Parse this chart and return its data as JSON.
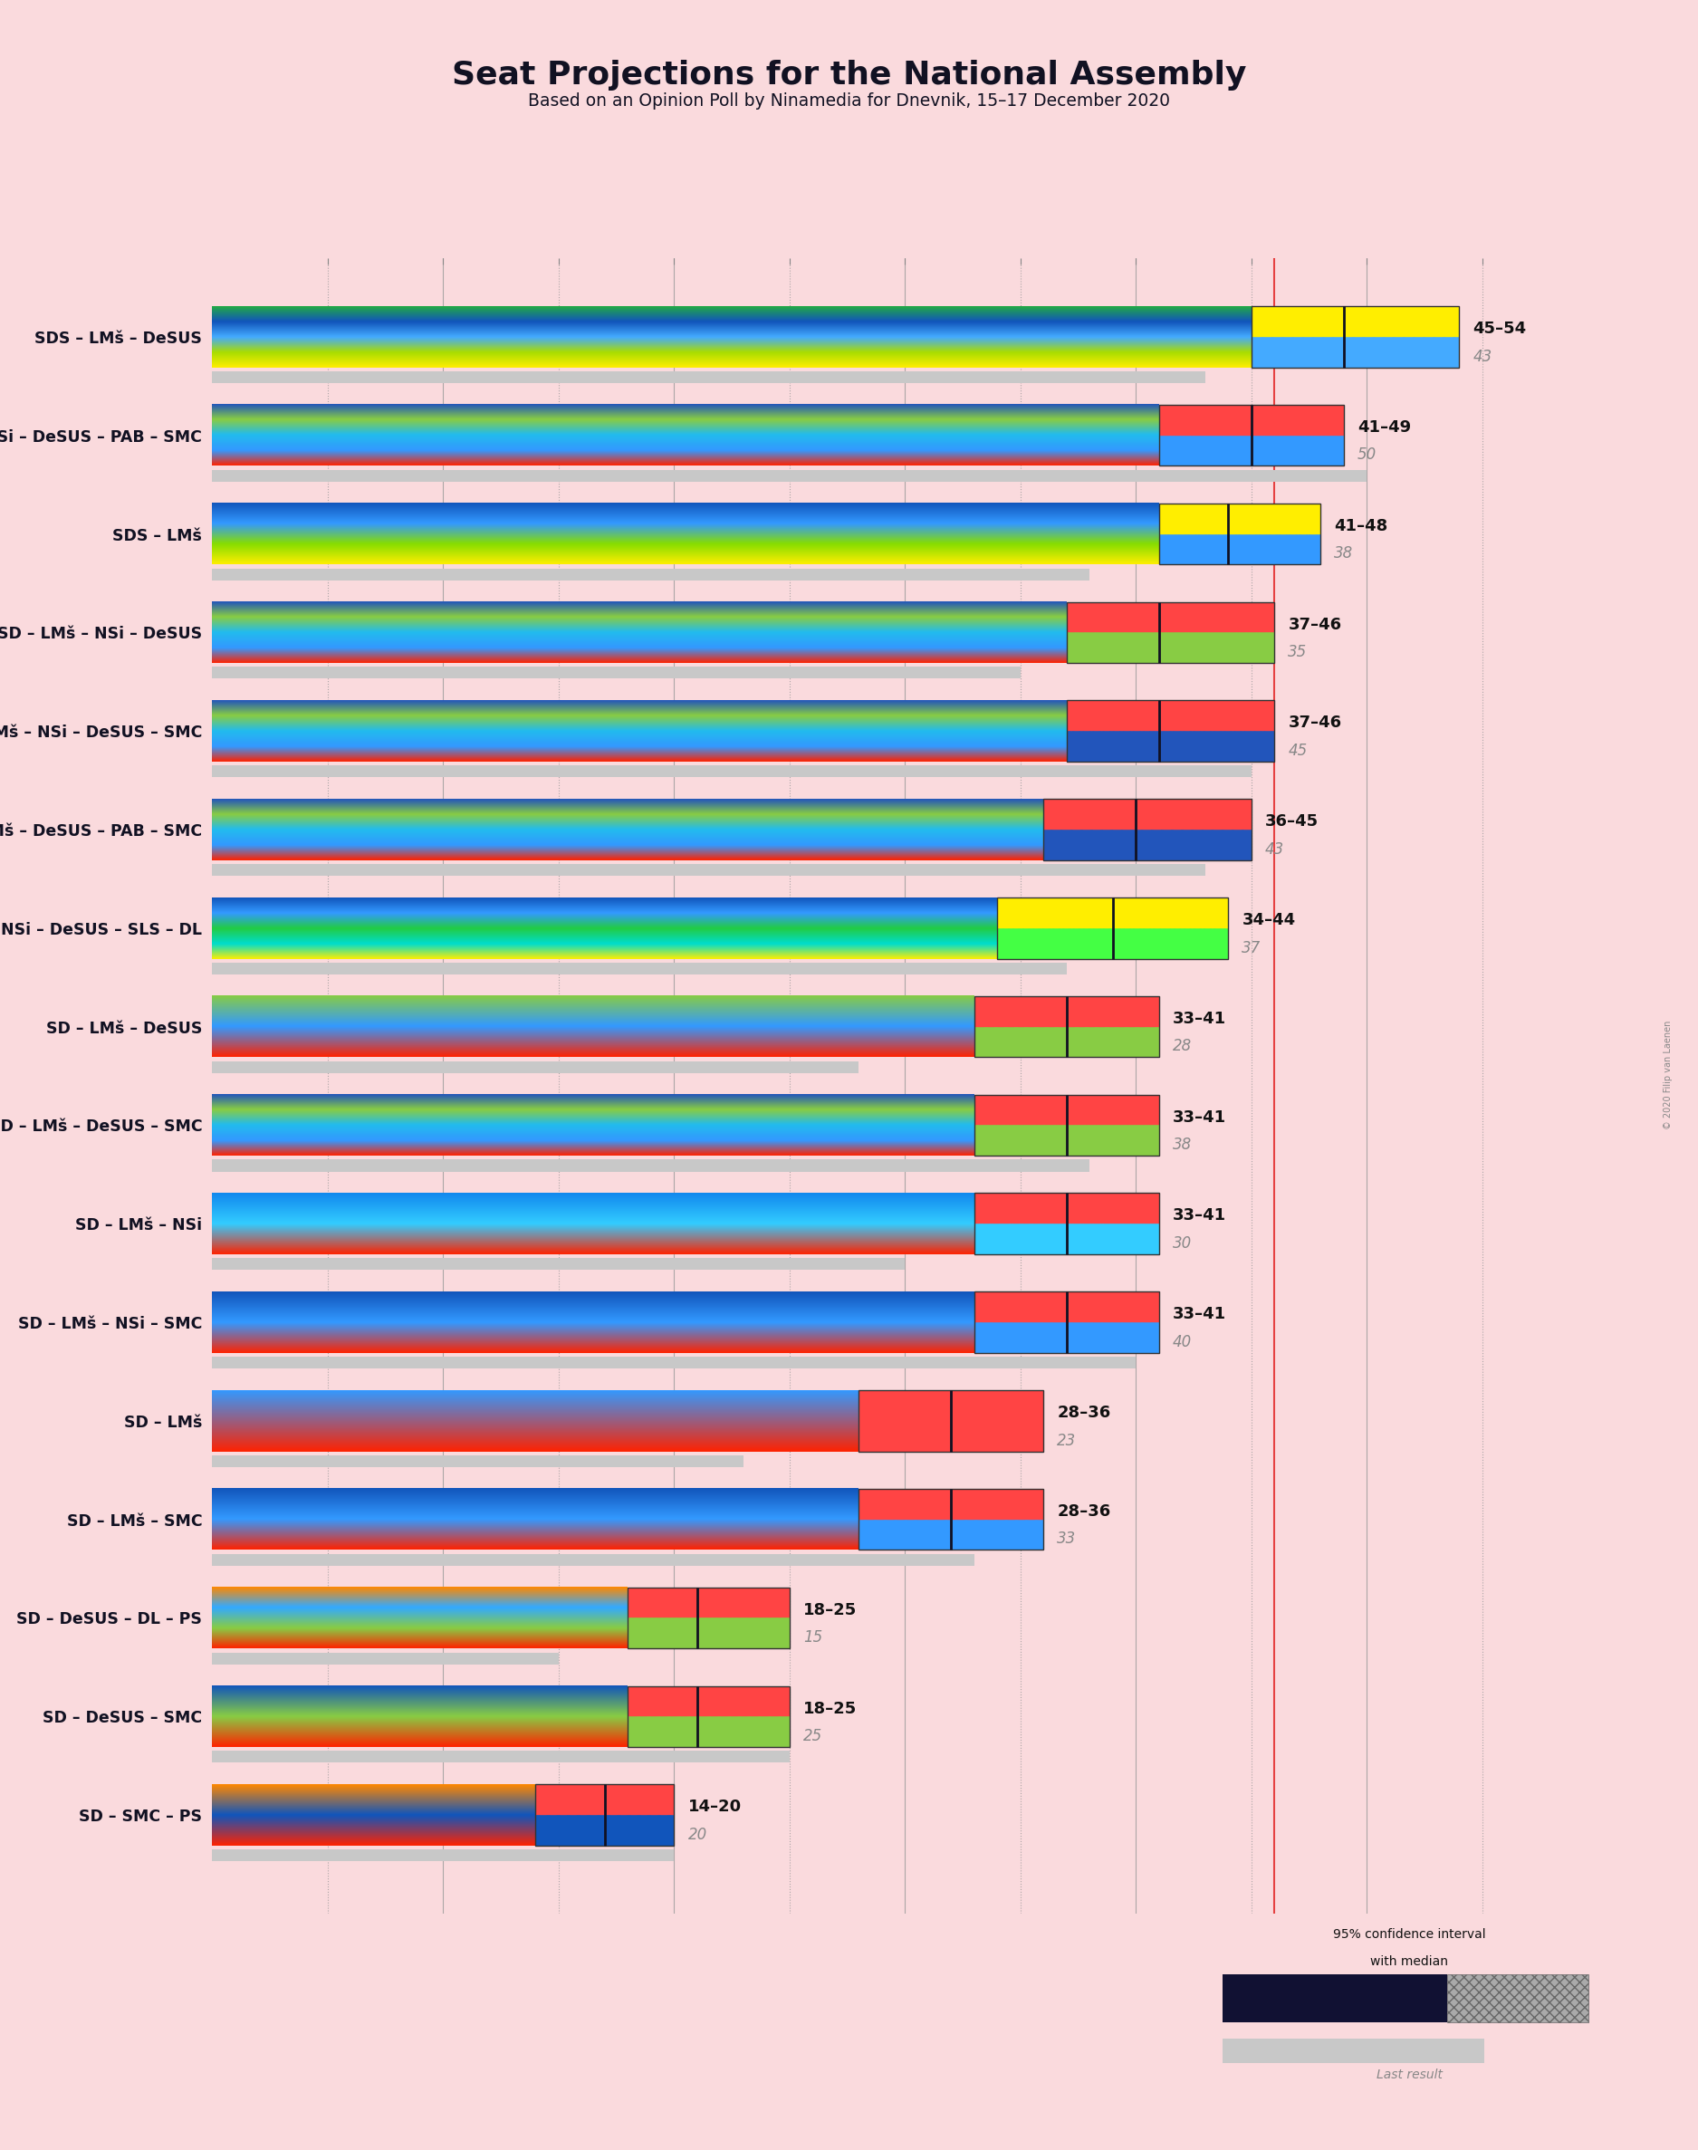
{
  "title": "Seat Projections for the National Assembly",
  "subtitle": "Based on an Opinion Poll by Ninamedia for Dnevnik, 15–17 December 2020",
  "background_color": "#fadadd",
  "coalitions": [
    {
      "name": "SDS – LMš – DeSUS",
      "low": 45,
      "high": 54,
      "median": 49,
      "last": 43,
      "bar_colors": [
        "#FFEE00",
        "#AADD00",
        "#44AAFF",
        "#1155BB",
        "#22AA44"
      ],
      "ci_top_color": [
        "#FFEE00",
        "#44FF44"
      ],
      "ci_bot_color": [
        "#44AAFF",
        "#1155BB"
      ],
      "type": "SDS"
    },
    {
      "name": "SD – LMš – NSi – DeSUS – PAB – SMC",
      "low": 41,
      "high": 49,
      "median": 45,
      "last": 50,
      "bar_colors": [
        "#FF2200",
        "#3399FF",
        "#22BBEE",
        "#88CC44",
        "#2255BB"
      ],
      "ci_top_color": [
        "#FF4444",
        "#FF8888"
      ],
      "ci_bot_color": [
        "#3399FF",
        "#2255BB"
      ],
      "type": "SD"
    },
    {
      "name": "SDS – LMš",
      "low": 41,
      "high": 48,
      "median": 44,
      "last": 38,
      "bar_colors": [
        "#FFEE00",
        "#88DD00",
        "#3399FF",
        "#1155BB"
      ],
      "ci_top_color": [
        "#FFEE00",
        "#FFFF88"
      ],
      "ci_bot_color": [
        "#3399FF",
        "#1155BB"
      ],
      "type": "SDS"
    },
    {
      "name": "SD – LMš – NSi – DeSUS",
      "low": 37,
      "high": 46,
      "median": 41,
      "last": 35,
      "bar_colors": [
        "#FF2200",
        "#3399FF",
        "#22BBEE",
        "#88CC44",
        "#2255BB"
      ],
      "ci_top_color": [
        "#FF4444",
        "#FF8888"
      ],
      "ci_bot_color": [
        "#88CC44",
        "#44AA00"
      ],
      "type": "SD"
    },
    {
      "name": "SD – LMš – NSi – DeSUS – SMC",
      "low": 37,
      "high": 46,
      "median": 41,
      "last": 45,
      "bar_colors": [
        "#FF2200",
        "#3399FF",
        "#22BBEE",
        "#88CC44",
        "#2255BB"
      ],
      "ci_top_color": [
        "#FF4444",
        "#FF8888"
      ],
      "ci_bot_color": [
        "#2255BB",
        "#001199"
      ],
      "type": "SD"
    },
    {
      "name": "SD – LMš – DeSUS – PAB – SMC",
      "low": 36,
      "high": 45,
      "median": 40,
      "last": 43,
      "bar_colors": [
        "#FF2200",
        "#3399FF",
        "#22BBEE",
        "#88CC44",
        "#2255BB"
      ],
      "ci_top_color": [
        "#FF4444",
        "#FF8888"
      ],
      "ci_bot_color": [
        "#2255BB",
        "#001199"
      ],
      "type": "SD"
    },
    {
      "name": "SDS – NSi – DeSUS – SLS – DL",
      "low": 34,
      "high": 44,
      "median": 39,
      "last": 37,
      "bar_colors": [
        "#FFEE00",
        "#00DDCC",
        "#22CC44",
        "#3399FF",
        "#1155BB"
      ],
      "ci_top_color": [
        "#FFEE00",
        "#00FFCC"
      ],
      "ci_bot_color": [
        "#44FF44",
        "#22BB44"
      ],
      "type": "SDS"
    },
    {
      "name": "SD – LMš – DeSUS",
      "low": 33,
      "high": 41,
      "median": 37,
      "last": 28,
      "bar_colors": [
        "#FF2200",
        "#3399FF",
        "#88CC44"
      ],
      "ci_top_color": [
        "#FF4444",
        "#FF8888"
      ],
      "ci_bot_color": [
        "#88CC44",
        "#44AA00"
      ],
      "type": "SD"
    },
    {
      "name": "SD – LMš – DeSUS – SMC",
      "low": 33,
      "high": 41,
      "median": 37,
      "last": 38,
      "bar_colors": [
        "#FF2200",
        "#3399FF",
        "#22BBEE",
        "#88CC44",
        "#2255BB"
      ],
      "ci_top_color": [
        "#FF4444",
        "#FF8888"
      ],
      "ci_bot_color": [
        "#88CC44",
        "#44AA00"
      ],
      "type": "SD"
    },
    {
      "name": "SD – LMš – NSi",
      "low": 33,
      "high": 41,
      "median": 37,
      "last": 30,
      "bar_colors": [
        "#FF2200",
        "#33CCFF",
        "#1188EE"
      ],
      "ci_top_color": [
        "#FF4444",
        "#FF8888"
      ],
      "ci_bot_color": [
        "#33CCFF",
        "#1188EE"
      ],
      "type": "SD"
    },
    {
      "name": "SD – LMš – NSi – SMC",
      "low": 33,
      "high": 41,
      "median": 37,
      "last": 40,
      "bar_colors": [
        "#FF2200",
        "#3399FF",
        "#1155BB"
      ],
      "ci_top_color": [
        "#FF4444",
        "#FF8888"
      ],
      "ci_bot_color": [
        "#3399FF",
        "#1155BB"
      ],
      "type": "SD"
    },
    {
      "name": "SD – LMš",
      "low": 28,
      "high": 36,
      "median": 32,
      "last": 23,
      "bar_colors": [
        "#FF2200",
        "#3399FF"
      ],
      "ci_top_color": [
        "#FF4444",
        "#FF8888"
      ],
      "ci_bot_color": [
        "#FF4444",
        "#FF8888"
      ],
      "type": "SD"
    },
    {
      "name": "SD – LMš – SMC",
      "low": 28,
      "high": 36,
      "median": 32,
      "last": 33,
      "bar_colors": [
        "#FF2200",
        "#3399FF",
        "#1155BB"
      ],
      "ci_top_color": [
        "#FF4444",
        "#FF8888"
      ],
      "ci_bot_color": [
        "#3399FF",
        "#1155BB"
      ],
      "type": "SD"
    },
    {
      "name": "SD – DeSUS – DL – PS",
      "low": 18,
      "high": 25,
      "median": 21,
      "last": 15,
      "bar_colors": [
        "#FF2200",
        "#88CC44",
        "#33AAFF",
        "#FF8800"
      ],
      "ci_top_color": [
        "#FF4444",
        "#FF8888"
      ],
      "ci_bot_color": [
        "#88CC44",
        "#44AA00"
      ],
      "type": "SD"
    },
    {
      "name": "SD – DeSUS – SMC",
      "low": 18,
      "high": 25,
      "median": 21,
      "last": 25,
      "bar_colors": [
        "#FF2200",
        "#88CC44",
        "#1155BB"
      ],
      "ci_top_color": [
        "#FF4444",
        "#FF8888"
      ],
      "ci_bot_color": [
        "#88CC44",
        "#44AA00"
      ],
      "type": "SD"
    },
    {
      "name": "SD – SMC – PS",
      "low": 14,
      "high": 20,
      "median": 17,
      "last": 20,
      "bar_colors": [
        "#FF2200",
        "#1155BB",
        "#FF8800"
      ],
      "ci_top_color": [
        "#FF4444",
        "#FF8888"
      ],
      "ci_bot_color": [
        "#1155BB",
        "#001199"
      ],
      "type": "SD"
    }
  ],
  "xmax": 57,
  "majority_line": 46
}
